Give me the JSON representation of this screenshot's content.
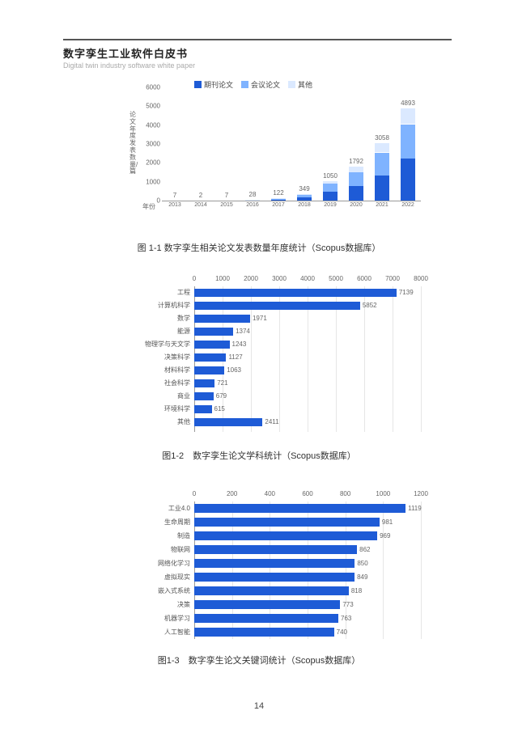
{
  "header": {
    "title_cn": "数字孪生工业软件白皮书",
    "title_en": "Digital twin industry software white paper",
    "rule_color": "#555555"
  },
  "page_number": "14",
  "chart1": {
    "type": "stacked-bar",
    "legend": [
      {
        "label": "期刊论文",
        "color": "#1e5bd6"
      },
      {
        "label": "会议论文",
        "color": "#7fb3ff"
      },
      {
        "label": "其他",
        "color": "#dbe9ff"
      }
    ],
    "y_label": "论文年度发表数量/篇",
    "x_label": "年份",
    "y_max": 6000,
    "y_tick_step": 1000,
    "y_ticks": [
      0,
      1000,
      2000,
      3000,
      4000,
      5000,
      6000
    ],
    "categories": [
      "2013",
      "2014",
      "2015",
      "2016",
      "2017",
      "2018",
      "2019",
      "2020",
      "2021",
      "2022"
    ],
    "totals": [
      7,
      2,
      7,
      28,
      122,
      349,
      1050,
      1792,
      3058,
      4893
    ],
    "stacks": [
      [
        4,
        2,
        1
      ],
      [
        1,
        1,
        0
      ],
      [
        3,
        2,
        2
      ],
      [
        12,
        9,
        7
      ],
      [
        52,
        44,
        26
      ],
      [
        152,
        133,
        64
      ],
      [
        455,
        432,
        163
      ],
      [
        793,
        718,
        281
      ],
      [
        1333,
        1218,
        507
      ],
      [
        2219,
        1832,
        842
      ]
    ],
    "grid_color": "#e6e6e6",
    "axis_color": "#999999",
    "label_fontsize": 8,
    "caption": "图 1-1 数字孪生相关论文发表数量年度统计（Scopus数据库）"
  },
  "chart2": {
    "type": "horizontal-bar",
    "x_max": 8000,
    "x_tick_step": 1000,
    "x_ticks": [
      0,
      1000,
      2000,
      3000,
      4000,
      5000,
      6000,
      7000,
      8000
    ],
    "bar_color": "#1e5bd6",
    "grid_color": "#e6e6e6",
    "axis_color": "#999999",
    "label_fontsize": 8,
    "rows": [
      {
        "label": "工程",
        "value": 7139
      },
      {
        "label": "计算机科学",
        "value": 5852
      },
      {
        "label": "数学",
        "value": 1971
      },
      {
        "label": "能源",
        "value": 1374
      },
      {
        "label": "物理学与天文学",
        "value": 1243
      },
      {
        "label": "决策科学",
        "value": 1127
      },
      {
        "label": "材料科学",
        "value": 1063
      },
      {
        "label": "社会科学",
        "value": 721
      },
      {
        "label": "商业",
        "value": 679
      },
      {
        "label": "环境科学",
        "value": 615
      },
      {
        "label": "其他",
        "value": 2411
      }
    ],
    "caption": "图1-2　数字孪生论文学科统计（Scopus数据库）"
  },
  "chart3": {
    "type": "horizontal-bar",
    "x_max": 1200,
    "x_tick_step": 200,
    "x_ticks": [
      0,
      200,
      400,
      600,
      800,
      1000,
      1200
    ],
    "bar_color": "#1e5bd6",
    "grid_color": "#e6e6e6",
    "axis_color": "#999999",
    "label_fontsize": 8,
    "rows": [
      {
        "label": "工业4.0",
        "value": 1119
      },
      {
        "label": "生命周期",
        "value": 981
      },
      {
        "label": "制造",
        "value": 969
      },
      {
        "label": "物联网",
        "value": 862
      },
      {
        "label": "网络化学习",
        "value": 850
      },
      {
        "label": "虚拟现实",
        "value": 849
      },
      {
        "label": "嵌入式系统",
        "value": 818
      },
      {
        "label": "决策",
        "value": 773
      },
      {
        "label": "机器学习",
        "value": 763
      },
      {
        "label": "人工智能",
        "value": 740
      }
    ],
    "caption": "图1-3　数字孪生论文关键词统计（Scopus数据库）"
  }
}
